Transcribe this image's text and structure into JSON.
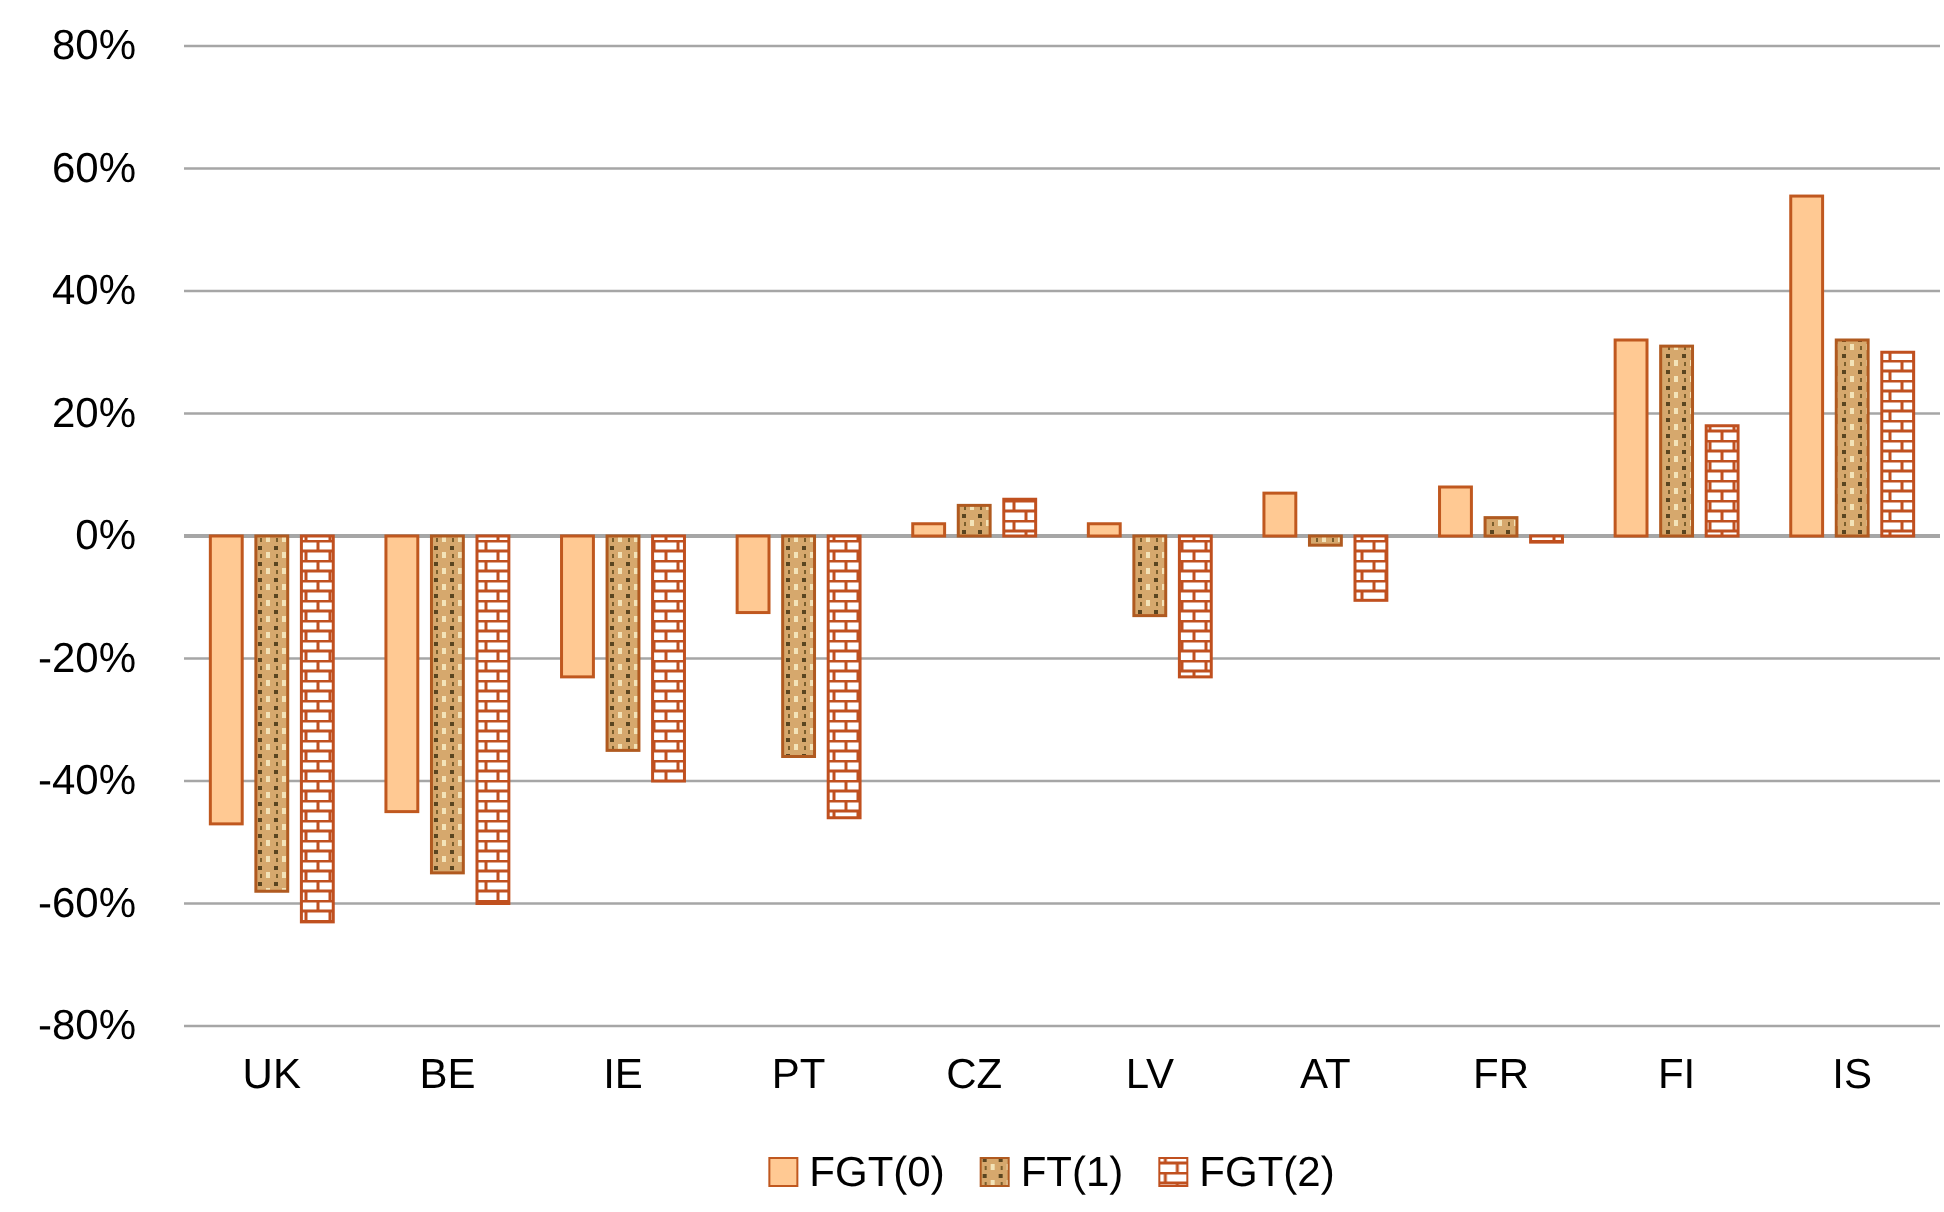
{
  "chart_data": {
    "type": "bar",
    "categories": [
      "UK",
      "BE",
      "IE",
      "PT",
      "CZ",
      "LV",
      "AT",
      "FR",
      "FI",
      "IS"
    ],
    "series": [
      {
        "name": "FGT(0)",
        "color": "#ffc993",
        "values": [
          -47,
          -45,
          -23,
          -12.5,
          2,
          2,
          7,
          8,
          32,
          55.5
        ]
      },
      {
        "name": "FT(1)",
        "color": "#b05a20",
        "values": [
          -58,
          -55,
          -35,
          -36,
          5,
          -13,
          -1.5,
          3,
          31,
          32
        ]
      },
      {
        "name": "FGT(2)",
        "color": "#c0501f",
        "values": [
          -63,
          -60,
          -40,
          -46,
          6,
          -23,
          -10.5,
          -1,
          18,
          30
        ]
      }
    ],
    "ylim": [
      -80,
      80
    ],
    "yticks": [
      {
        "value": -80,
        "label": "-80%"
      },
      {
        "value": -60,
        "label": "-60%"
      },
      {
        "value": -40,
        "label": "-40%"
      },
      {
        "value": -20,
        "label": "-20%"
      },
      {
        "value": 0,
        "label": "0%"
      },
      {
        "value": 20,
        "label": "20%"
      },
      {
        "value": 40,
        "label": "40%"
      },
      {
        "value": 60,
        "label": "60%"
      },
      {
        "value": 80,
        "label": "80%"
      }
    ],
    "grid": "y",
    "legend": "bottom"
  }
}
